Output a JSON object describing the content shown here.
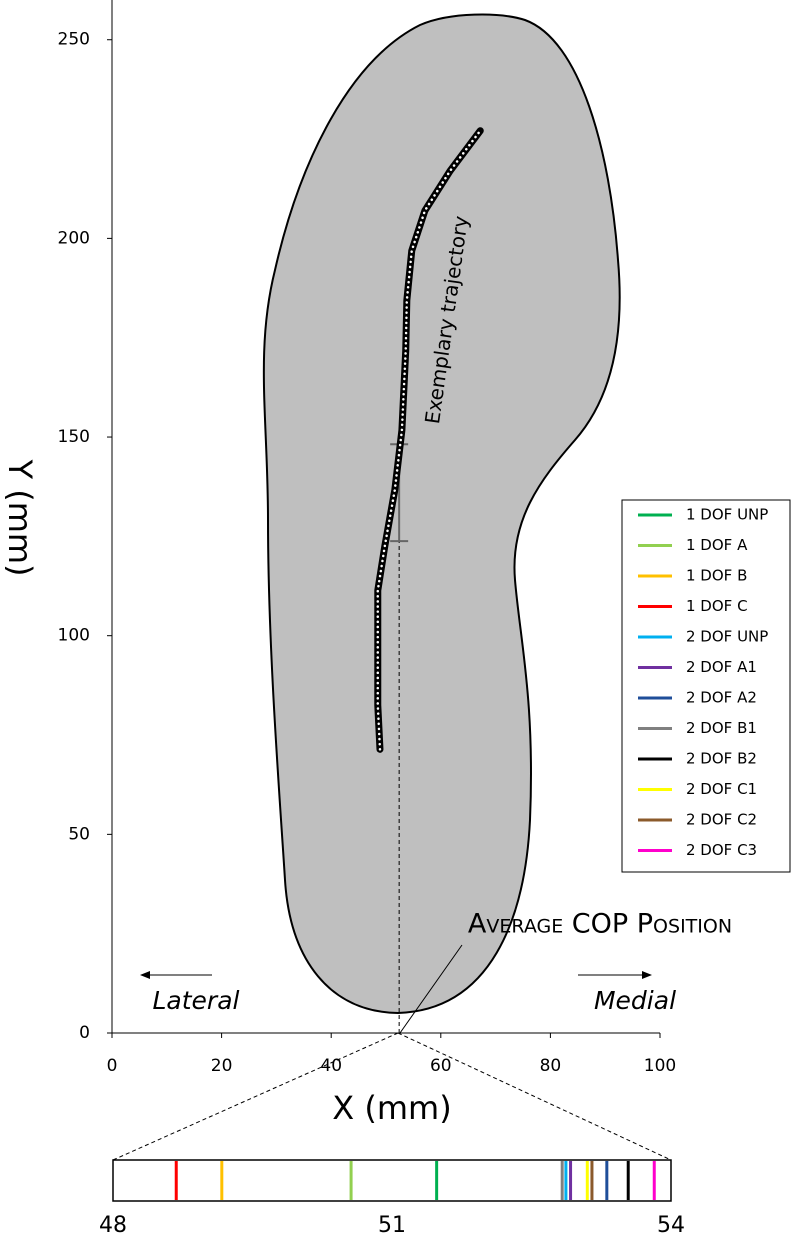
{
  "chart_data": [
    {
      "type": "line",
      "x_label": "X (mm)",
      "y_label": "Y (mm)",
      "xlim": [
        0,
        100
      ],
      "xticks": [
        0,
        20,
        40,
        60,
        80,
        100
      ],
      "ylim": [
        0,
        260
      ],
      "yticks": [
        0,
        50,
        100,
        150,
        200,
        250
      ],
      "annotations": {
        "trajectory": "Exemplary trajectory",
        "lateral": "Lateral",
        "medial": "Medial",
        "cop": "Average COP Position"
      },
      "series": [
        {
          "color": "#000000",
          "x": [
            48.9,
            48.5,
            48.5,
            48.5,
            49.8,
            51.6,
            52.9,
            53.6,
            53.8,
            54.7,
            57.1,
            61.7,
            67.2
          ],
          "values": [
            71.4,
            82.5,
            102.6,
            111.4,
            122.7,
            136.6,
            151.7,
            171.8,
            184.4,
            196.9,
            207,
            217,
            227.1
          ]
        }
      ],
      "cop": {
        "x": 52.4,
        "y": 136,
        "yerr": 12.2,
        "color": "#666666"
      }
    },
    {
      "type": "strip",
      "xlim": [
        48,
        54
      ],
      "xticks": [
        48,
        51,
        54
      ],
      "legend": "right",
      "series": [
        {
          "name": "1 DOF UNP",
          "color": "#00b050",
          "values": [
            51.48
          ]
        },
        {
          "name": "1 DOF A",
          "color": "#92d050",
          "values": [
            50.56
          ]
        },
        {
          "name": "1 DOF B",
          "color": "#ffc000",
          "values": [
            49.17
          ]
        },
        {
          "name": "1 DOF C",
          "color": "#ff0000",
          "values": [
            48.68
          ]
        },
        {
          "name": "2 DOF UNP",
          "color": "#00b0f0",
          "values": [
            52.87
          ]
        },
        {
          "name": "2 DOF A1",
          "color": "#7030a0",
          "values": [
            52.92
          ]
        },
        {
          "name": "2 DOF A2",
          "color": "#1f4e99",
          "values": [
            53.31
          ]
        },
        {
          "name": "2 DOF B1",
          "color": "#808080",
          "values": [
            52.83
          ]
        },
        {
          "name": "2 DOF B2",
          "color": "#000000",
          "values": [
            53.54
          ]
        },
        {
          "name": "2 DOF C1",
          "color": "#ffff00",
          "values": [
            53.1
          ]
        },
        {
          "name": "2 DOF C2",
          "color": "#8b5a2b",
          "values": [
            53.15
          ]
        },
        {
          "name": "2 DOF C3",
          "color": "#ff00cc",
          "values": [
            53.82
          ]
        }
      ]
    }
  ]
}
